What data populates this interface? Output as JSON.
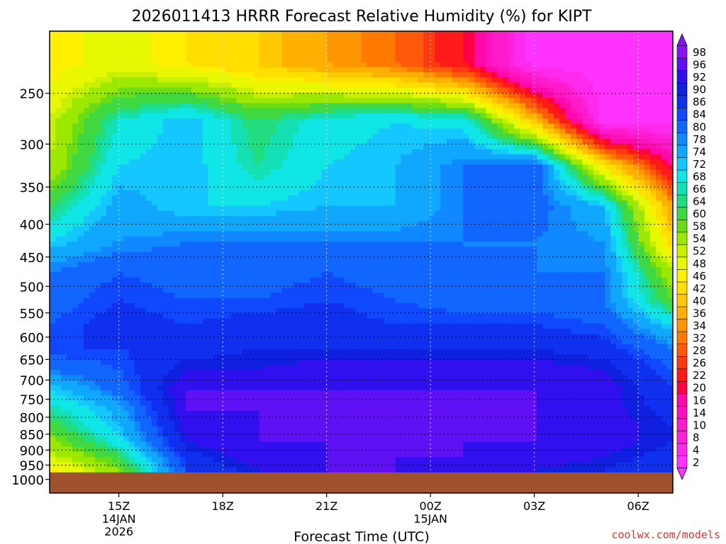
{
  "chart_data": {
    "type": "heatmap",
    "title": "2026011413 HRRR Forecast Relative Humidity (%) for KIPT",
    "xlabel": "Forecast Time (UTC)",
    "ylabel": "",
    "credit": "coolwx.com/models",
    "y_scale": "log",
    "y_reversed": true,
    "y_ticks": [
      250,
      300,
      350,
      400,
      450,
      500,
      550,
      600,
      650,
      700,
      750,
      800,
      850,
      900,
      950,
      1000
    ],
    "y_tick_labels": [
      "250",
      "300",
      "350",
      "400",
      "450",
      "500",
      "550",
      "600",
      "650",
      "700",
      "750",
      "800",
      "850",
      "900",
      "950",
      "1000"
    ],
    "ylim": [
      200,
      1050
    ],
    "x_range_hours": [
      13,
      31
    ],
    "x_ticks": [
      {
        "hour": 15,
        "label": "15Z",
        "date": "14JAN",
        "year": "2026"
      },
      {
        "hour": 18,
        "label": "18Z",
        "date": "",
        "year": ""
      },
      {
        "hour": 21,
        "label": "21Z",
        "date": "",
        "year": ""
      },
      {
        "hour": 24,
        "label": "00Z",
        "date": "15JAN",
        "year": ""
      },
      {
        "hour": 27,
        "label": "03Z",
        "date": "",
        "year": ""
      },
      {
        "hour": 30,
        "label": "06Z",
        "date": "",
        "year": ""
      }
    ],
    "grid": true,
    "legend": "right",
    "colorbar": {
      "labels": [
        "2",
        "4",
        "8",
        "10",
        "14",
        "16",
        "20",
        "22",
        "26",
        "28",
        "32",
        "34",
        "36",
        "40",
        "42",
        "46",
        "48",
        "52",
        "54",
        "58",
        "60",
        "64",
        "66",
        "68",
        "72",
        "74",
        "78",
        "80",
        "84",
        "86",
        "90",
        "92",
        "96",
        "98"
      ],
      "colors": [
        "#ff33ff",
        "#ff2aee",
        "#ff22dd",
        "#ff1acc",
        "#ff12bb",
        "#ff0aaa",
        "#ff0044",
        "#ff1a1a",
        "#ff3a12",
        "#ff5a0a",
        "#ff7a00",
        "#ff9600",
        "#ffb000",
        "#ffc800",
        "#ffde00",
        "#fff000",
        "#e8f800",
        "#c8f000",
        "#9ce800",
        "#6cdc14",
        "#40d840",
        "#22dc80",
        "#14e0b4",
        "#10e6e6",
        "#14c8ff",
        "#10a8ff",
        "#1088ff",
        "#1066ff",
        "#1048ff",
        "#1030f0",
        "#1020e0",
        "#3010ee",
        "#6010f4",
        "#8a12f8"
      ]
    },
    "rh_profile": {
      "levels_hPa": [
        225,
        275,
        325,
        375,
        425,
        475,
        525,
        575,
        625,
        675,
        725,
        775,
        825,
        875,
        925,
        965
      ],
      "hours": [
        13,
        15,
        17,
        19,
        21,
        23,
        25,
        27,
        29,
        31
      ],
      "rh": [
        [
          46,
          50,
          46,
          42,
          36,
          32,
          22,
          2,
          2,
          2
        ],
        [
          52,
          68,
          74,
          64,
          70,
          72,
          70,
          40,
          2,
          2
        ],
        [
          54,
          72,
          74,
          66,
          72,
          74,
          80,
          84,
          46,
          20
        ],
        [
          64,
          76,
          72,
          72,
          74,
          74,
          80,
          82,
          74,
          36
        ],
        [
          72,
          78,
          80,
          80,
          80,
          80,
          80,
          80,
          78,
          42
        ],
        [
          80,
          84,
          82,
          82,
          84,
          82,
          80,
          80,
          80,
          54
        ],
        [
          82,
          86,
          84,
          84,
          86,
          84,
          82,
          82,
          80,
          60
        ],
        [
          84,
          88,
          86,
          88,
          88,
          86,
          86,
          86,
          84,
          72
        ],
        [
          86,
          86,
          88,
          90,
          90,
          90,
          90,
          90,
          88,
          80
        ],
        [
          80,
          84,
          92,
          92,
          94,
          94,
          94,
          94,
          92,
          84
        ],
        [
          72,
          82,
          96,
          96,
          96,
          96,
          96,
          96,
          94,
          86
        ],
        [
          66,
          76,
          96,
          96,
          98,
          98,
          96,
          96,
          94,
          88
        ],
        [
          62,
          74,
          94,
          96,
          98,
          96,
          96,
          96,
          94,
          90
        ],
        [
          56,
          70,
          92,
          96,
          96,
          96,
          96,
          96,
          94,
          90
        ],
        [
          52,
          62,
          88,
          94,
          96,
          96,
          96,
          94,
          92,
          88
        ],
        [
          46,
          58,
          86,
          92,
          96,
          96,
          94,
          92,
          90,
          86
        ]
      ]
    },
    "ground_level_hPa": 975,
    "ground_color": "#a0522d"
  }
}
